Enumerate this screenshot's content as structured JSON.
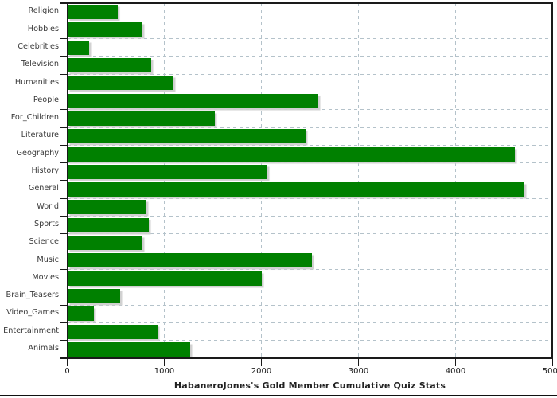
{
  "chart_data": {
    "type": "bar",
    "orientation": "horizontal",
    "title": "HabaneroJones's Gold Member Cumulative Quiz Stats",
    "categories": [
      "Religion",
      "Hobbies",
      "Celebrities",
      "Television",
      "Humanities",
      "People",
      "For_Children",
      "Literature",
      "Geography",
      "History",
      "General",
      "World",
      "Sports",
      "Science",
      "Music",
      "Movies",
      "Brain_Teasers",
      "Video_Games",
      "Entertainment",
      "Animals"
    ],
    "values": [
      520,
      775,
      225,
      865,
      1095,
      2585,
      1520,
      2450,
      4610,
      2060,
      4710,
      810,
      835,
      770,
      2515,
      2000,
      540,
      275,
      925,
      1265
    ],
    "xlabel": "",
    "ylabel": "",
    "xlim": [
      0,
      5000
    ],
    "x_ticks": [
      0,
      1000,
      2000,
      3000,
      4000,
      5000
    ],
    "x_tick_labels": [
      "0",
      "1000",
      "2000",
      "3000",
      "4000",
      "5000"
    ],
    "grid": "dashed",
    "legend": "none",
    "bar_color": "#008000",
    "shadow_color": "#c9c9c9",
    "gridline_color": "#b4c2ca",
    "axis_color": "#1a1a1a",
    "background": "#ffffff"
  }
}
